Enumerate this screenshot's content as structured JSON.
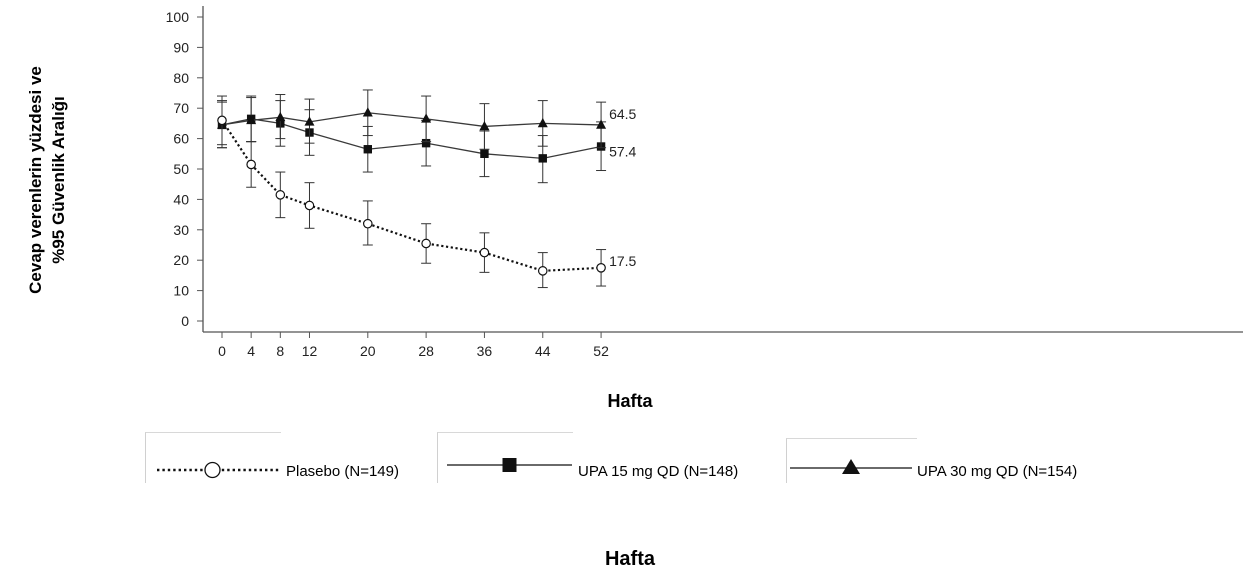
{
  "chart_data": {
    "type": "line",
    "ylabel_line1": "Cevap verenlerin yüzdesi ve",
    "ylabel_line2": "%95 Güvenlik Aralığı",
    "xlabel": "Hafta",
    "bottom_label": "Hafta",
    "x": [
      0,
      4,
      8,
      12,
      20,
      28,
      36,
      44,
      52
    ],
    "ylim": [
      0,
      100
    ],
    "yticks": [
      0,
      10,
      20,
      30,
      40,
      50,
      60,
      70,
      80,
      90,
      100
    ],
    "series": [
      {
        "name": "Plasebo (N=149)",
        "marker": "circle-open",
        "line": "dotted",
        "color": "#000000",
        "values": [
          66,
          51.5,
          41.5,
          38,
          32,
          25.5,
          22.5,
          16.5,
          17.5
        ],
        "ci_low": [
          58,
          44,
          34,
          30.5,
          25,
          19,
          16,
          11,
          11.5
        ],
        "ci_high": [
          74,
          59,
          49,
          45.5,
          39.5,
          32,
          29,
          22.5,
          23.5
        ],
        "end_label": "17.5"
      },
      {
        "name": "UPA 15 mg QD (N=148)",
        "marker": "square",
        "line": "solid",
        "color": "#3a3a3a",
        "values": [
          64.5,
          66.5,
          65,
          62,
          56.5,
          58.5,
          55,
          53.5,
          57.4
        ],
        "ci_low": [
          57,
          59,
          57.5,
          54.5,
          49,
          51,
          47.5,
          45.5,
          49.5
        ],
        "ci_high": [
          72,
          74,
          72.5,
          69.5,
          64,
          66,
          62.5,
          61,
          65.5
        ],
        "end_label": "57.4"
      },
      {
        "name": "UPA 30 mg QD (N=154)",
        "marker": "triangle",
        "line": "solid",
        "color": "#3a3a3a",
        "values": [
          64.5,
          66,
          67,
          65.5,
          68.5,
          66.5,
          64,
          65,
          64.5
        ],
        "ci_low": [
          57,
          59,
          60,
          58.5,
          61,
          59,
          56.5,
          57.5,
          57
        ],
        "ci_high": [
          72.5,
          73.5,
          74.5,
          73,
          76,
          74,
          71.5,
          72.5,
          72
        ],
        "end_label": "64.5"
      }
    ],
    "legend": [
      {
        "label": "Plasebo (N=149)"
      },
      {
        "label": "UPA 15 mg QD (N=148)"
      },
      {
        "label": "UPA 30 mg QD (N=154)"
      }
    ]
  }
}
